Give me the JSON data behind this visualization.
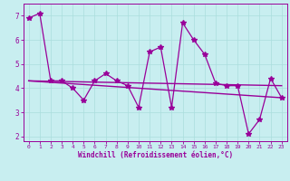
{
  "xlabel": "Windchill (Refroidissement éolien,°C)",
  "background_color": "#c8eef0",
  "line_color": "#990099",
  "x_values": [
    0,
    1,
    2,
    3,
    4,
    5,
    6,
    7,
    8,
    9,
    10,
    11,
    12,
    13,
    14,
    15,
    16,
    17,
    18,
    19,
    20,
    21,
    22,
    23
  ],
  "y_main": [
    6.9,
    7.1,
    4.3,
    4.3,
    4.0,
    3.5,
    4.3,
    4.6,
    4.3,
    4.1,
    3.2,
    5.5,
    5.7,
    3.2,
    6.7,
    6.0,
    5.4,
    4.2,
    4.1,
    4.1,
    2.1,
    2.7,
    4.4,
    3.6
  ],
  "y_trend1_x": [
    0,
    23
  ],
  "y_trend1_y": [
    4.3,
    4.1
  ],
  "y_trend2_x": [
    0,
    23
  ],
  "y_trend2_y": [
    4.3,
    3.6
  ],
  "xlim": [
    -0.5,
    23.5
  ],
  "ylim": [
    1.8,
    7.5
  ],
  "yticks": [
    2,
    3,
    4,
    5,
    6,
    7
  ],
  "xticks": [
    0,
    1,
    2,
    3,
    4,
    5,
    6,
    7,
    8,
    9,
    10,
    11,
    12,
    13,
    14,
    15,
    16,
    17,
    18,
    19,
    20,
    21,
    22,
    23
  ],
  "grid_color": "#aadddd",
  "marker": "*",
  "markersize": 4,
  "linewidth": 0.9,
  "tick_fontsize_x": 4.5,
  "tick_fontsize_y": 5.5,
  "xlabel_fontsize": 5.5
}
